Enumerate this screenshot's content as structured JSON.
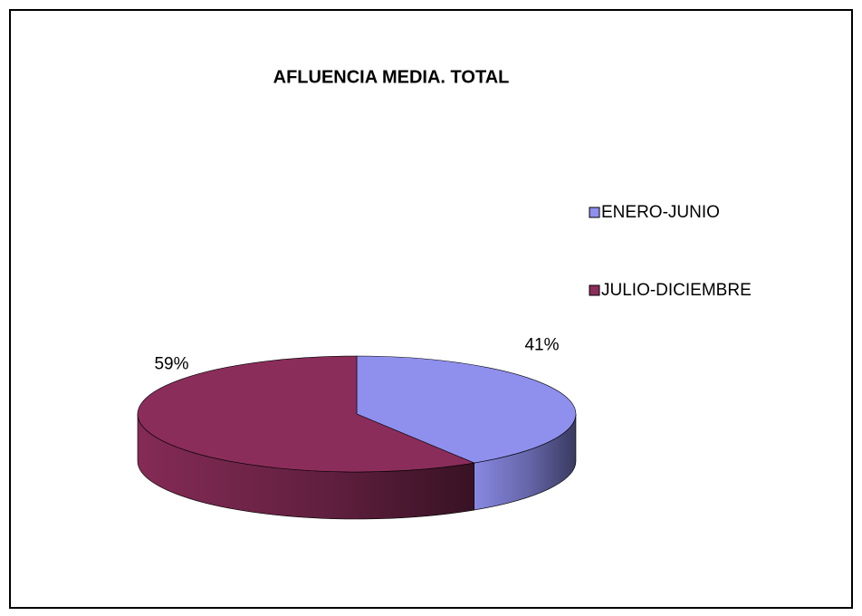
{
  "chart_data": {
    "type": "pie",
    "title": "AFLUENCIA MEDIA. TOTAL",
    "categories": [
      "ENERO-JUNIO",
      "JULIO-DICIEMBRE"
    ],
    "values": [
      41,
      59
    ],
    "value_labels": [
      "41%",
      "59%"
    ],
    "colors": [
      "#8f8fee",
      "#8b2d5a"
    ],
    "legend": "right"
  }
}
